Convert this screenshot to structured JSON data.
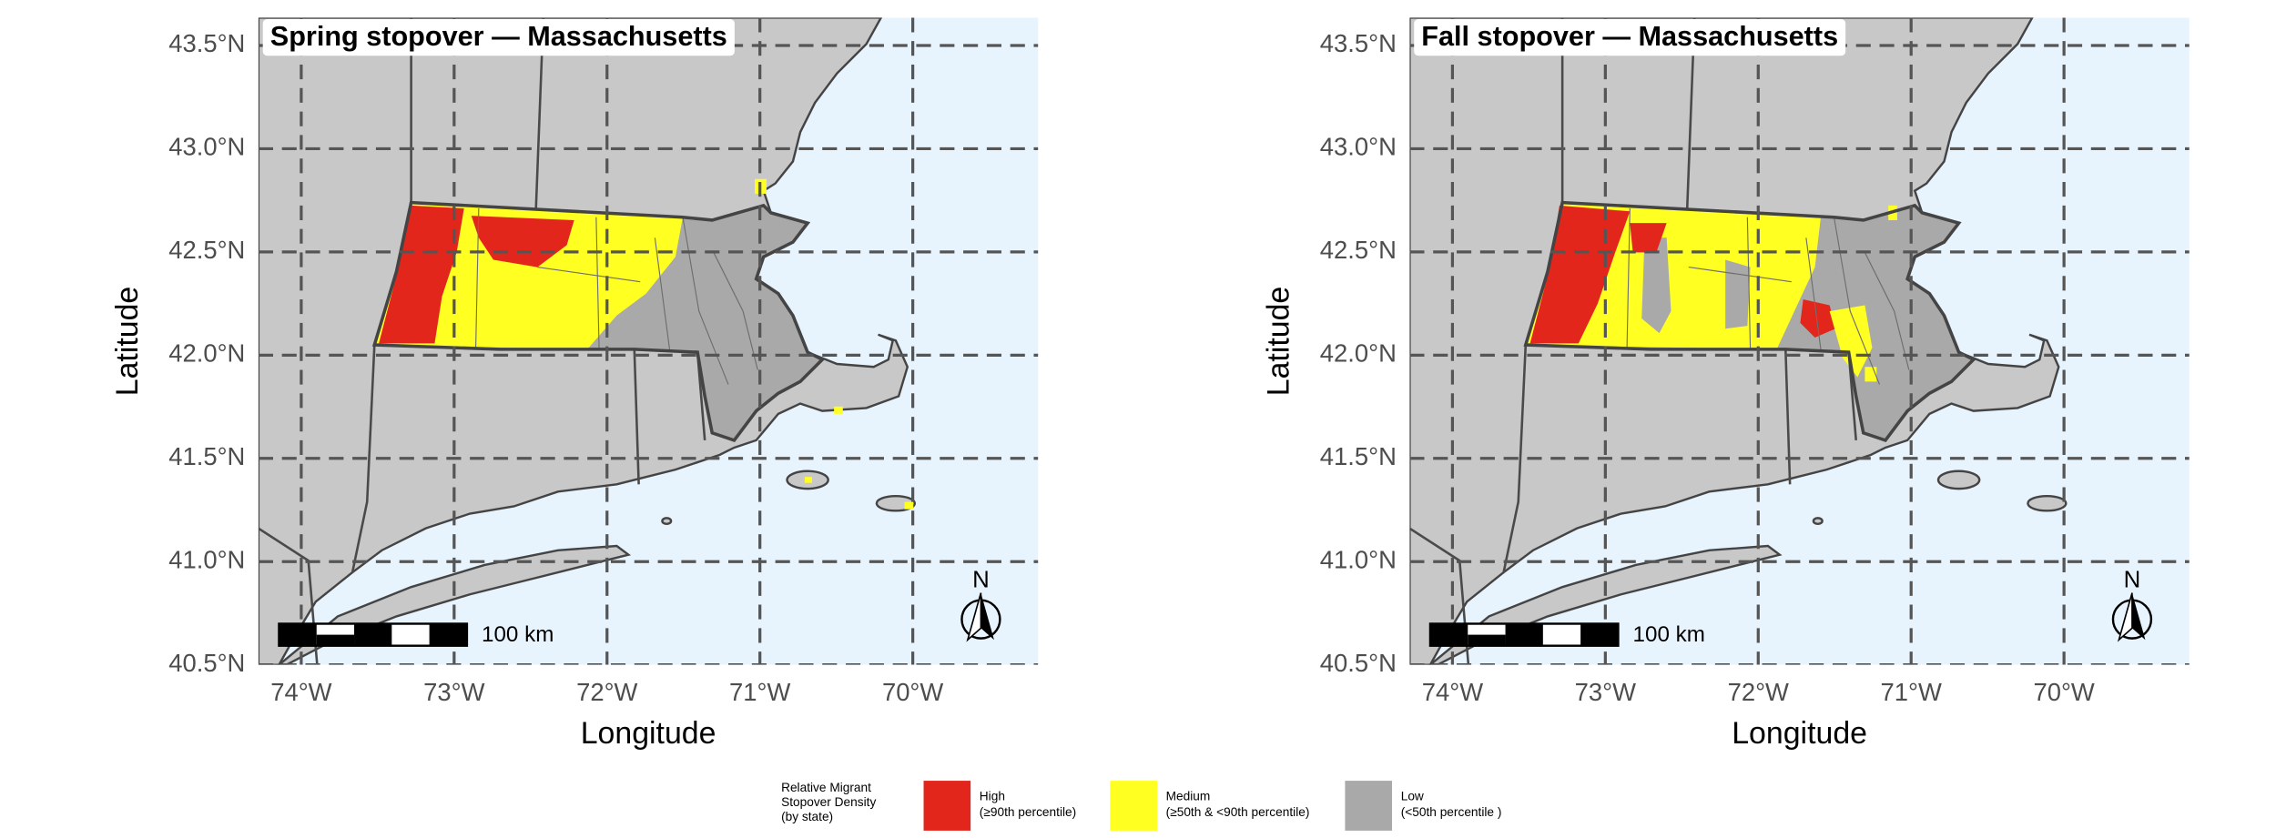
{
  "panels": [
    {
      "title": "Spring stopover — Massachusetts",
      "xlabel": "Longitude",
      "ylabel": "Latitude",
      "xlim": [
        -74.28,
        -69.18
      ],
      "ylim": [
        40.5,
        43.635
      ],
      "xticks": [
        {
          "value": -74,
          "label": "74°W"
        },
        {
          "value": -73,
          "label": "73°W"
        },
        {
          "value": -72,
          "label": "72°W"
        },
        {
          "value": -71,
          "label": "71°W"
        },
        {
          "value": -70,
          "label": "70°W"
        }
      ],
      "yticks": [
        {
          "value": 40.5,
          "label": "40.5°N"
        },
        {
          "value": 41.0,
          "label": "41.0°N"
        },
        {
          "value": 41.5,
          "label": "41.5°N"
        },
        {
          "value": 42.0,
          "label": "42.0°N"
        },
        {
          "value": 42.5,
          "label": "42.5°N"
        },
        {
          "value": 43.0,
          "label": "43.0°N"
        },
        {
          "value": 43.5,
          "label": "43.5°N"
        }
      ],
      "scale_label": "100 km",
      "north_label": "N"
    },
    {
      "title": "Fall stopover — Massachusetts",
      "xlabel": "Longitude",
      "ylabel": "Latitude",
      "xlim": [
        -74.28,
        -69.18
      ],
      "ylim": [
        40.5,
        43.635
      ],
      "xticks": [
        {
          "value": -74,
          "label": "74°W"
        },
        {
          "value": -73,
          "label": "73°W"
        },
        {
          "value": -72,
          "label": "72°W"
        },
        {
          "value": -71,
          "label": "71°W"
        },
        {
          "value": -70,
          "label": "70°W"
        }
      ],
      "yticks": [
        {
          "value": 40.5,
          "label": "40.5°N"
        },
        {
          "value": 41.0,
          "label": "41.0°N"
        },
        {
          "value": 41.5,
          "label": "41.5°N"
        },
        {
          "value": 42.0,
          "label": "42.0°N"
        },
        {
          "value": 42.5,
          "label": "42.5°N"
        },
        {
          "value": 43.0,
          "label": "43.0°N"
        },
        {
          "value": 43.5,
          "label": "43.5°N"
        }
      ],
      "scale_label": "100 km",
      "north_label": "N"
    }
  ],
  "legend": {
    "title": [
      "Relative Migrant",
      "Stopover Density",
      "(by state)"
    ],
    "items": [
      {
        "label": "High",
        "detail": "(≥90th percentile)",
        "color": "#e3261c"
      },
      {
        "label": "Medium",
        "detail": "(≥50th & <90th percentile)",
        "color": "#ffff22"
      },
      {
        "label": "Low",
        "detail": "(<50th percentile )",
        "color": "#a9a9a9"
      }
    ]
  }
}
